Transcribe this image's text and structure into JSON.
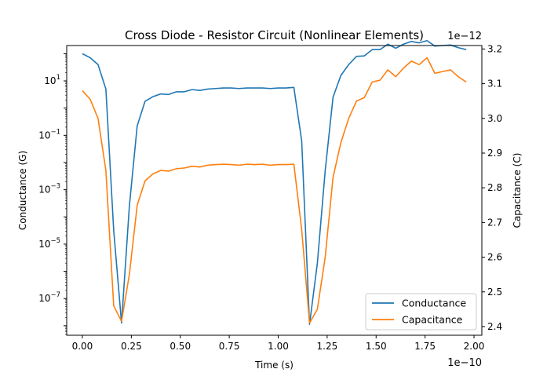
{
  "chart_data": {
    "type": "line",
    "title": "Cross Diode - Resistor Circuit (Nonlinear Elements)",
    "xlabel": "Time (s)",
    "x_scale_label": "1e−10",
    "xlim": [
      -0.08,
      2.04
    ],
    "x_ticks": [
      0.0,
      0.25,
      0.5,
      0.75,
      1.0,
      1.25,
      1.5,
      1.75,
      2.0
    ],
    "x_tick_labels": [
      "0.00",
      "0.25",
      "0.50",
      "0.75",
      "1.00",
      "1.25",
      "1.50",
      "1.75",
      "2.00"
    ],
    "y_left": {
      "label": "Conductance (G)",
      "scale": "log",
      "ylim_exp": [
        -8.35,
        2.3
      ],
      "tick_exps": [
        1,
        -1,
        -3,
        -5,
        -7
      ],
      "tick_labels": [
        "10",
        "10",
        "10",
        "10",
        "10"
      ],
      "tick_sups": [
        "1",
        "−1",
        "−3",
        "−5",
        "−7"
      ]
    },
    "y_right": {
      "label": "Capacitance (C)",
      "scale": "linear",
      "scale_label": "1e−12",
      "ylim": [
        2.375,
        3.21
      ],
      "ticks": [
        2.4,
        2.5,
        2.6,
        2.7,
        2.8,
        2.9,
        3.0,
        3.1,
        3.2
      ],
      "tick_labels": [
        "2.4",
        "2.5",
        "2.6",
        "2.7",
        "2.8",
        "2.9",
        "3.0",
        "3.1",
        "3.2"
      ]
    },
    "x": [
      0.0,
      0.04,
      0.08,
      0.12,
      0.16,
      0.2,
      0.24,
      0.28,
      0.32,
      0.36,
      0.4,
      0.44,
      0.48,
      0.52,
      0.56,
      0.6,
      0.64,
      0.68,
      0.72,
      0.76,
      0.8,
      0.84,
      0.88,
      0.92,
      0.96,
      1.0,
      1.04,
      1.08,
      1.12,
      1.16,
      1.2,
      1.24,
      1.28,
      1.32,
      1.36,
      1.4,
      1.44,
      1.48,
      1.52,
      1.56,
      1.6,
      1.64,
      1.68,
      1.72,
      1.76,
      1.8,
      1.84,
      1.88,
      1.92,
      1.96
    ],
    "series": [
      {
        "name": "Conductance",
        "axis": "left",
        "color": "#1f77b4",
        "log10_values": [
          2.0,
          1.85,
          1.6,
          0.7,
          -4.5,
          -7.9,
          -3.6,
          -0.65,
          0.25,
          0.42,
          0.52,
          0.5,
          0.6,
          0.6,
          0.68,
          0.65,
          0.7,
          0.72,
          0.74,
          0.74,
          0.72,
          0.74,
          0.74,
          0.74,
          0.72,
          0.74,
          0.74,
          0.76,
          -1.2,
          -7.95,
          -5.7,
          -2.3,
          0.4,
          1.2,
          1.6,
          1.9,
          1.92,
          2.15,
          2.15,
          2.35,
          2.2,
          2.35,
          2.45,
          2.4,
          2.48,
          2.28,
          2.3,
          2.32,
          2.22,
          2.15
        ]
      },
      {
        "name": "Capacitance",
        "axis": "right",
        "color": "#ff7f0e",
        "values": [
          3.08,
          3.055,
          3.0,
          2.85,
          2.46,
          2.415,
          2.55,
          2.75,
          2.82,
          2.84,
          2.85,
          2.848,
          2.855,
          2.857,
          2.862,
          2.86,
          2.865,
          2.867,
          2.868,
          2.867,
          2.865,
          2.868,
          2.867,
          2.868,
          2.865,
          2.867,
          2.867,
          2.868,
          2.68,
          2.41,
          2.45,
          2.6,
          2.83,
          2.93,
          3.0,
          3.05,
          3.06,
          3.105,
          3.11,
          3.14,
          3.12,
          3.145,
          3.165,
          3.155,
          3.175,
          3.13,
          3.135,
          3.14,
          3.12,
          3.105
        ]
      }
    ],
    "legend": {
      "placement": "lower-right",
      "entries": [
        "Conductance",
        "Capacitance"
      ]
    },
    "grid": false
  }
}
